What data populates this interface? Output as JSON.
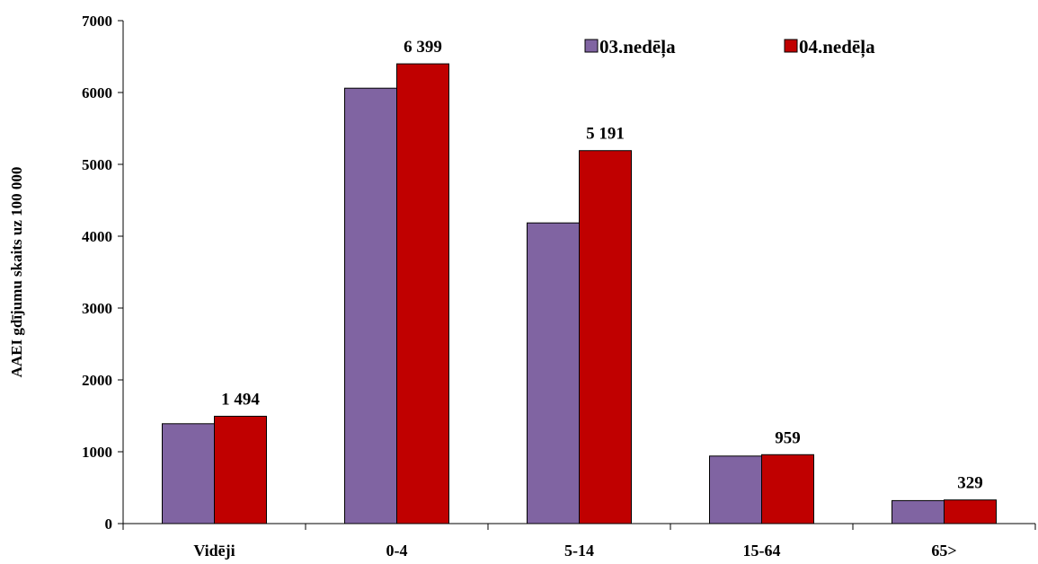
{
  "chart_data": {
    "type": "bar",
    "ylabel": "AAEI gdījumu skaits uz 100 000",
    "xlabel": "",
    "ylim": [
      0,
      7000
    ],
    "yticks": [
      "0",
      "1000",
      "2000",
      "3000",
      "4000",
      "5000",
      "6000",
      "7000"
    ],
    "categories": [
      "Vidēji",
      "0-4",
      "5-14",
      "15-64",
      "65>"
    ],
    "series": [
      {
        "name": "03.nedēļa",
        "color": "#8064a2",
        "values": [
          1390,
          6060,
          4185,
          940,
          320
        ],
        "labels": [
          "",
          "",
          "",
          "",
          ""
        ]
      },
      {
        "name": "04.nedēļa",
        "color": "#c00000",
        "values": [
          1494,
          6399,
          5191,
          959,
          329
        ],
        "labels": [
          "1 494",
          "6 399",
          "5 191",
          "959",
          "329"
        ]
      }
    ],
    "legend_position": "top-right",
    "grid": false
  }
}
